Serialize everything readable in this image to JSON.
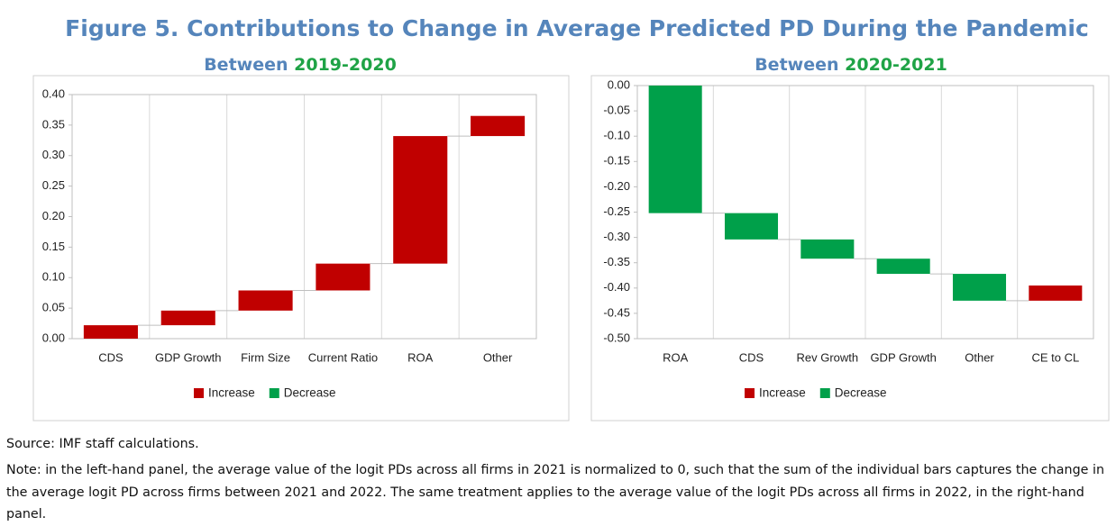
{
  "figure_title": "Figure 5. Contributions to Change in Average Predicted PD During the Pandemic",
  "chart_data": [
    {
      "type": "waterfall",
      "title": "Between",
      "title_highlight": "2019-2020",
      "categories": [
        "CDS",
        "GDP Growth",
        "Firm Size",
        "Current Ratio",
        "ROA",
        "Other"
      ],
      "series": [
        {
          "name": "Increase",
          "color": "#c00000",
          "values": [
            0.022,
            0.024,
            0.033,
            0.044,
            0.209,
            0.033
          ]
        },
        {
          "name": "Decrease",
          "color": "#00a04a",
          "values": [
            null,
            null,
            null,
            null,
            null,
            null
          ]
        }
      ],
      "ylim": [
        0,
        0.4
      ],
      "yticks": [
        {
          "value": 0,
          "label": "0.00"
        },
        {
          "value": 0.05,
          "label": "0.05"
        },
        {
          "value": 0.1,
          "label": "0.10"
        },
        {
          "value": 0.15,
          "label": "0.15"
        },
        {
          "value": 0.2,
          "label": "0.20"
        },
        {
          "value": 0.25,
          "label": "0.25"
        },
        {
          "value": 0.3,
          "label": "0.30"
        },
        {
          "value": 0.35,
          "label": "0.35"
        },
        {
          "value": 0.4,
          "label": "0.40"
        }
      ],
      "legend": "bottom"
    },
    {
      "type": "waterfall",
      "title": "Between",
      "title_highlight": "2020-2021",
      "categories": [
        "ROA",
        "CDS",
        "Rev Growth",
        "GDP Growth",
        "Other",
        "CE to CL"
      ],
      "series": [
        {
          "name": "Increase",
          "color": "#c00000",
          "values": [
            null,
            null,
            null,
            null,
            null,
            0.03
          ]
        },
        {
          "name": "Decrease",
          "color": "#00a04a",
          "values": [
            -0.252,
            -0.052,
            -0.038,
            -0.03,
            -0.053,
            null
          ]
        }
      ],
      "ylim": [
        -0.5,
        0
      ],
      "yticks": [
        {
          "value": 0,
          "label": "0.00"
        },
        {
          "value": -0.05,
          "label": "-0.05"
        },
        {
          "value": -0.1,
          "label": "-0.10"
        },
        {
          "value": -0.15,
          "label": "-0.15"
        },
        {
          "value": -0.2,
          "label": "-0.20"
        },
        {
          "value": -0.25,
          "label": "-0.25"
        },
        {
          "value": -0.3,
          "label": "-0.30"
        },
        {
          "value": -0.35,
          "label": "-0.35"
        },
        {
          "value": -0.4,
          "label": "-0.40"
        },
        {
          "value": -0.45,
          "label": "-0.45"
        },
        {
          "value": -0.5,
          "label": "-0.50"
        }
      ],
      "legend": "bottom"
    }
  ],
  "source": "Source: IMF staff calculations.",
  "note": "Note: in the left-hand panel, the average value of the logit PDs across all firms in 2021 is normalized to 0, such that the sum of the individual bars captures the change in the average logit PD across firms between 2021 and 2022. The same treatment applies to the average value of the logit PDs across all firms in 2022, in the right-hand panel."
}
